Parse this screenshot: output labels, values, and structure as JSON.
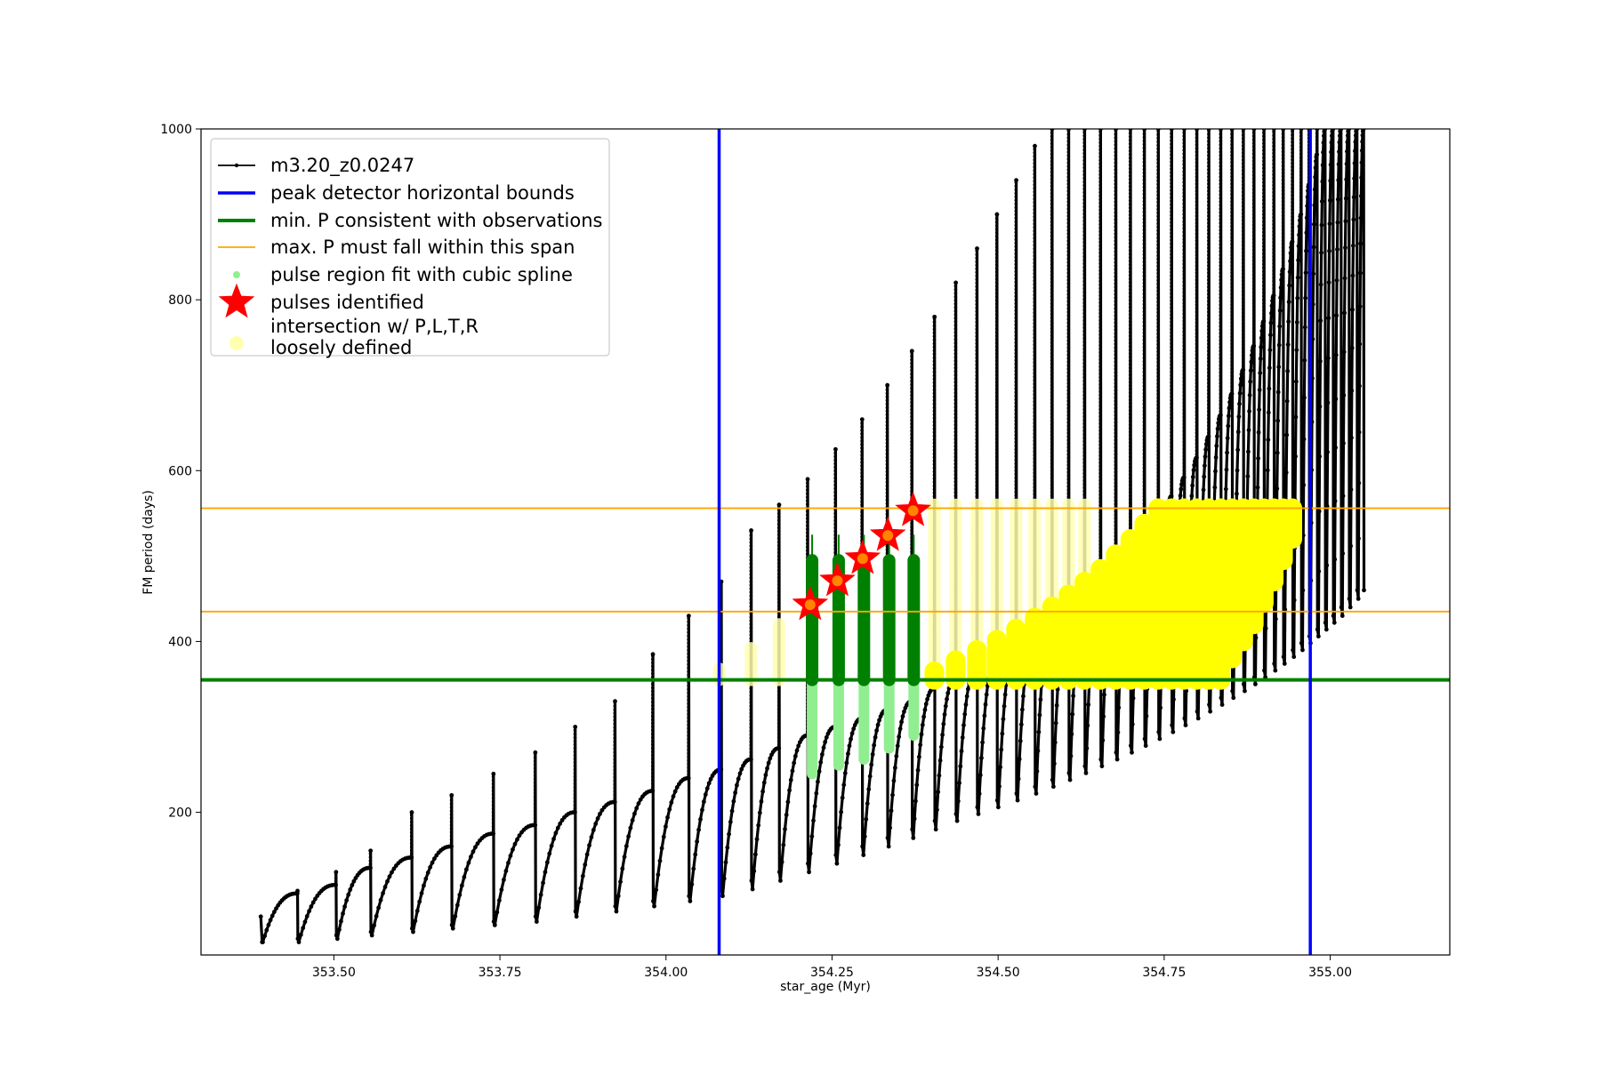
{
  "chart_data": {
    "type": "line",
    "title": "",
    "xlabel": "star_age (Myr)",
    "ylabel": "FM period (days)",
    "xlim": [
      353.3,
      355.18
    ],
    "ylim": [
      33,
      1000
    ],
    "xticks": [
      {
        "value": 353.5,
        "label": "353.50"
      },
      {
        "value": 353.75,
        "label": "353.75"
      },
      {
        "value": 354.0,
        "label": "354.00"
      },
      {
        "value": 354.25,
        "label": "354.25"
      },
      {
        "value": 354.5,
        "label": "354.50"
      },
      {
        "value": 354.75,
        "label": "354.75"
      },
      {
        "value": 355.0,
        "label": "355.00"
      }
    ],
    "yticks": [
      {
        "value": 200,
        "label": "200"
      },
      {
        "value": 400,
        "label": "400"
      },
      {
        "value": 600,
        "label": "600"
      },
      {
        "value": 800,
        "label": "800"
      },
      {
        "value": 1000,
        "label": "1000"
      }
    ],
    "grid": false,
    "legend_position": "top-left",
    "colors": {
      "track": "#000000",
      "bounds": "#0000ff",
      "min_p": "#008000",
      "max_p": "#ffa500",
      "spline": "#90ee90",
      "pulse": "#ff0000",
      "pulse_edge": "#ff0000",
      "intersection": "#ffff00",
      "intersection_loose": "#ffffb0"
    },
    "legend": [
      {
        "key": "track",
        "label": "m3.20_z0.0247"
      },
      {
        "key": "bounds",
        "label": "peak detector horizontal bounds"
      },
      {
        "key": "min_p",
        "label": "min. P consistent with observations"
      },
      {
        "key": "max_p",
        "label": "max. P must fall within this span"
      },
      {
        "key": "spline",
        "label": "pulse region fit with cubic spline"
      },
      {
        "key": "pulse",
        "label": "pulses identified"
      },
      {
        "key": "intersection",
        "label_lines": [
          "intersection w/ P,L,T,R",
          "loosely defined"
        ]
      }
    ],
    "vertical_bounds": [
      354.08,
      354.97
    ],
    "min_p": 355,
    "max_p_span": [
      435,
      556
    ],
    "track": {
      "name": "m3.20_z0.0247",
      "start_age": 353.39,
      "end_age": 355.05,
      "pulses": [
        {
          "age": 353.445,
          "trough": 48,
          "rise": 105,
          "peak": 108
        },
        {
          "age": 353.503,
          "trough": 52,
          "rise": 115,
          "peak": 130
        },
        {
          "age": 353.555,
          "trough": 56,
          "rise": 135,
          "peak": 155
        },
        {
          "age": 353.617,
          "trough": 60,
          "rise": 147,
          "peak": 200
        },
        {
          "age": 353.677,
          "trough": 64,
          "rise": 160,
          "peak": 220
        },
        {
          "age": 353.74,
          "trough": 68,
          "rise": 175,
          "peak": 245
        },
        {
          "age": 353.803,
          "trough": 72,
          "rise": 185,
          "peak": 270
        },
        {
          "age": 353.863,
          "trough": 78,
          "rise": 200,
          "peak": 300
        },
        {
          "age": 353.923,
          "trough": 84,
          "rise": 212,
          "peak": 330
        },
        {
          "age": 353.98,
          "trough": 90,
          "rise": 225,
          "peak": 385
        },
        {
          "age": 354.034,
          "trough": 96,
          "rise": 240,
          "peak": 430
        },
        {
          "age": 354.083,
          "trough": 102,
          "rise": 250,
          "peak": 470
        },
        {
          "age": 354.128,
          "trough": 110,
          "rise": 262,
          "peak": 530
        },
        {
          "age": 354.17,
          "trough": 120,
          "rise": 275,
          "peak": 560
        },
        {
          "age": 354.213,
          "trough": 130,
          "rise": 290,
          "peak": 590
        },
        {
          "age": 354.255,
          "trough": 140,
          "rise": 300,
          "peak": 625
        },
        {
          "age": 354.295,
          "trough": 150,
          "rise": 310,
          "peak": 660
        },
        {
          "age": 354.333,
          "trough": 160,
          "rise": 320,
          "peak": 700
        },
        {
          "age": 354.37,
          "trough": 170,
          "rise": 330,
          "peak": 740
        },
        {
          "age": 354.404,
          "trough": 180,
          "rise": 345,
          "peak": 780
        },
        {
          "age": 354.436,
          "trough": 190,
          "rise": 358,
          "peak": 820
        },
        {
          "age": 354.468,
          "trough": 198,
          "rise": 370,
          "peak": 860
        },
        {
          "age": 354.498,
          "trough": 206,
          "rise": 383,
          "peak": 900
        },
        {
          "age": 354.527,
          "trough": 214,
          "rise": 396,
          "peak": 940
        },
        {
          "age": 354.555,
          "trough": 222,
          "rise": 410,
          "peak": 980
        },
        {
          "age": 354.581,
          "trough": 230,
          "rise": 425,
          "peak": 1000
        },
        {
          "age": 354.606,
          "trough": 238,
          "rise": 440,
          "peak": 1000
        },
        {
          "age": 354.63,
          "trough": 246,
          "rise": 455,
          "peak": 1000
        },
        {
          "age": 354.654,
          "trough": 254,
          "rise": 472,
          "peak": 1000
        },
        {
          "age": 354.677,
          "trough": 262,
          "rise": 490,
          "peak": 1000
        },
        {
          "age": 354.699,
          "trough": 270,
          "rise": 508,
          "peak": 1000
        },
        {
          "age": 354.72,
          "trough": 278,
          "rise": 528,
          "peak": 1000
        },
        {
          "age": 354.741,
          "trough": 286,
          "rise": 548,
          "peak": 1000
        },
        {
          "age": 354.761,
          "trough": 294,
          "rise": 570,
          "peak": 1000
        },
        {
          "age": 354.78,
          "trough": 302,
          "rise": 592,
          "peak": 1000
        },
        {
          "age": 354.799,
          "trough": 310,
          "rise": 615,
          "peak": 1000
        },
        {
          "age": 354.817,
          "trough": 318,
          "rise": 640,
          "peak": 1000
        },
        {
          "age": 354.835,
          "trough": 326,
          "rise": 665,
          "peak": 1000
        },
        {
          "age": 354.852,
          "trough": 334,
          "rise": 690,
          "peak": 1000
        },
        {
          "age": 354.869,
          "trough": 342,
          "rise": 718,
          "peak": 1000
        },
        {
          "age": 354.885,
          "trough": 350,
          "rise": 746,
          "peak": 1000
        },
        {
          "age": 354.9,
          "trough": 358,
          "rise": 775,
          "peak": 1000
        },
        {
          "age": 354.915,
          "trough": 366,
          "rise": 805,
          "peak": 1000
        },
        {
          "age": 354.929,
          "trough": 374,
          "rise": 836,
          "peak": 1000
        },
        {
          "age": 354.943,
          "trough": 382,
          "rise": 868,
          "peak": 1000
        },
        {
          "age": 354.956,
          "trough": 390,
          "rise": 900,
          "peak": 1000
        },
        {
          "age": 354.968,
          "trough": 398,
          "rise": 935,
          "peak": 1000
        },
        {
          "age": 354.98,
          "trough": 406,
          "rise": 970,
          "peak": 1000
        },
        {
          "age": 354.992,
          "trough": 414,
          "rise": 1000,
          "peak": 1000
        },
        {
          "age": 355.004,
          "trough": 422,
          "rise": 1000,
          "peak": 1000
        },
        {
          "age": 355.016,
          "trough": 430,
          "rise": 1000,
          "peak": 1000
        },
        {
          "age": 355.028,
          "trough": 440,
          "rise": 1000,
          "peak": 1000
        },
        {
          "age": 355.04,
          "trough": 450,
          "rise": 1000,
          "peak": 1000
        },
        {
          "age": 355.05,
          "trough": 460,
          "rise": 1000,
          "peak": 1000
        }
      ]
    },
    "spline_regions": [
      {
        "age": 354.22,
        "low": 245,
        "high": 495
      },
      {
        "age": 354.26,
        "low": 255,
        "high": 495
      },
      {
        "age": 354.298,
        "low": 262,
        "high": 495
      },
      {
        "age": 354.336,
        "low": 275,
        "high": 495
      },
      {
        "age": 354.373,
        "low": 290,
        "high": 495
      }
    ],
    "pulse_region_strong": [
      {
        "age": 354.22,
        "low": 355,
        "high": 495
      },
      {
        "age": 354.26,
        "low": 355,
        "high": 495
      },
      {
        "age": 354.298,
        "low": 355,
        "high": 495
      },
      {
        "age": 354.336,
        "low": 355,
        "high": 495
      },
      {
        "age": 354.373,
        "low": 355,
        "high": 495
      }
    ],
    "pulses_identified": [
      {
        "age": 354.217,
        "period": 443
      },
      {
        "age": 354.258,
        "period": 471
      },
      {
        "age": 354.296,
        "period": 497
      },
      {
        "age": 354.334,
        "period": 524
      },
      {
        "age": 354.372,
        "period": 553
      }
    ],
    "intersection_columns_loose": [
      {
        "age": 354.08,
        "low": 355,
        "high": 368
      },
      {
        "age": 354.128,
        "low": 355,
        "high": 392
      },
      {
        "age": 354.17,
        "low": 355,
        "high": 420
      },
      {
        "age": 354.404,
        "low": 355,
        "high": 560
      },
      {
        "age": 354.436,
        "low": 355,
        "high": 560
      },
      {
        "age": 354.468,
        "low": 355,
        "high": 560
      },
      {
        "age": 354.498,
        "low": 355,
        "high": 560
      },
      {
        "age": 354.527,
        "low": 355,
        "high": 560
      },
      {
        "age": 354.555,
        "low": 355,
        "high": 560
      },
      {
        "age": 354.581,
        "low": 355,
        "high": 560
      },
      {
        "age": 354.606,
        "low": 355,
        "high": 560
      },
      {
        "age": 354.63,
        "low": 355,
        "high": 560
      }
    ],
    "intersection_columns": [
      {
        "age": 354.404,
        "low": 355,
        "high": 365
      },
      {
        "age": 354.436,
        "low": 355,
        "high": 378
      },
      {
        "age": 354.468,
        "low": 355,
        "high": 390
      },
      {
        "age": 354.498,
        "low": 355,
        "high": 402
      },
      {
        "age": 354.527,
        "low": 355,
        "high": 415
      },
      {
        "age": 354.555,
        "low": 355,
        "high": 428
      },
      {
        "age": 354.581,
        "low": 355,
        "high": 441
      },
      {
        "age": 354.606,
        "low": 355,
        "high": 455
      },
      {
        "age": 354.63,
        "low": 355,
        "high": 470
      },
      {
        "age": 354.654,
        "low": 355,
        "high": 485
      },
      {
        "age": 354.677,
        "low": 355,
        "high": 502
      },
      {
        "age": 354.699,
        "low": 355,
        "high": 520
      },
      {
        "age": 354.72,
        "low": 355,
        "high": 538
      },
      {
        "age": 354.741,
        "low": 355,
        "high": 556
      },
      {
        "age": 354.761,
        "low": 355,
        "high": 556
      },
      {
        "age": 354.78,
        "low": 355,
        "high": 556
      },
      {
        "age": 354.799,
        "low": 355,
        "high": 556
      },
      {
        "age": 354.817,
        "low": 355,
        "high": 556
      },
      {
        "age": 354.835,
        "low": 355,
        "high": 556
      },
      {
        "age": 354.852,
        "low": 380,
        "high": 556
      },
      {
        "age": 354.869,
        "low": 400,
        "high": 556
      },
      {
        "age": 354.885,
        "low": 420,
        "high": 556
      },
      {
        "age": 354.9,
        "low": 445,
        "high": 556
      },
      {
        "age": 354.915,
        "low": 470,
        "high": 556
      },
      {
        "age": 354.929,
        "low": 495,
        "high": 556
      },
      {
        "age": 354.943,
        "low": 520,
        "high": 556
      }
    ]
  }
}
